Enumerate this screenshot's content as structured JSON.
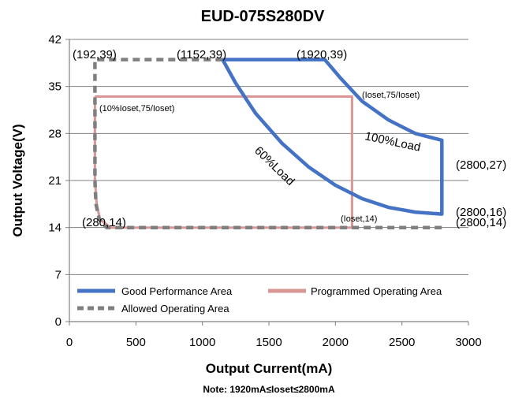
{
  "chart_data": {
    "type": "area",
    "title": "EUD-075S280DV",
    "xlabel": "Output Current(mA)",
    "ylabel": "Output Voltage(V)",
    "note": "Note:  1920mA≤Ioset≤2800mA",
    "xlim": [
      0,
      3000
    ],
    "ylim": [
      0,
      42
    ],
    "x_ticks": [
      0,
      500,
      1000,
      1500,
      2000,
      2500,
      3000
    ],
    "y_ticks": [
      0,
      7,
      14,
      21,
      28,
      35,
      42
    ],
    "grid": "horizontal",
    "legend_position": "bottom-inside",
    "legend": [
      "Good Performance Area",
      "Programmed Operating Area",
      "Allowed Operating Area"
    ],
    "series": [
      {
        "name": "Good Performance Area",
        "color": "#4472C4",
        "style": "solid",
        "points": [
          [
            1152,
            39
          ],
          [
            1920,
            39
          ],
          [
            2040,
            36.2
          ],
          [
            2200,
            32.8
          ],
          [
            2400,
            30.0
          ],
          [
            2600,
            28.0
          ],
          [
            2800,
            27
          ],
          [
            2800,
            16
          ],
          [
            2600,
            16.3
          ],
          [
            2400,
            17.0
          ],
          [
            2200,
            18.3
          ],
          [
            2000,
            20.3
          ],
          [
            1800,
            23.0
          ],
          [
            1600,
            26.5
          ],
          [
            1400,
            31.0
          ],
          [
            1250,
            35.5
          ],
          [
            1152,
            39
          ]
        ]
      },
      {
        "name": "Programmed Operating Area",
        "color": "#D99694",
        "style": "solid",
        "points": [
          [
            192,
            33.5
          ],
          [
            2125,
            33.5
          ],
          [
            2125,
            14
          ],
          [
            310,
            14
          ],
          [
            230,
            15.2
          ],
          [
            205,
            17.5
          ],
          [
            192,
            21
          ],
          [
            192,
            33.5
          ]
        ]
      },
      {
        "name": "Allowed Operating Area",
        "color": "#7F7F7F",
        "style": "dashed",
        "points": [
          [
            1152,
            39
          ],
          [
            192,
            39
          ],
          [
            192,
            21
          ],
          [
            200,
            17.5
          ],
          [
            225,
            15.2
          ],
          [
            280,
            14
          ],
          [
            2800,
            14
          ]
        ]
      }
    ],
    "annotations": [
      "(192,39)",
      "(1152,39)",
      "(1920,39)",
      "(Ioset,75/Ioset)",
      "(10%Ioset,75/Ioset)",
      "100%Load",
      "60%Load",
      "(2800,27)",
      "(2800,16)",
      "(280,14)",
      "(Ioset,14)",
      "(2800,14)"
    ]
  }
}
